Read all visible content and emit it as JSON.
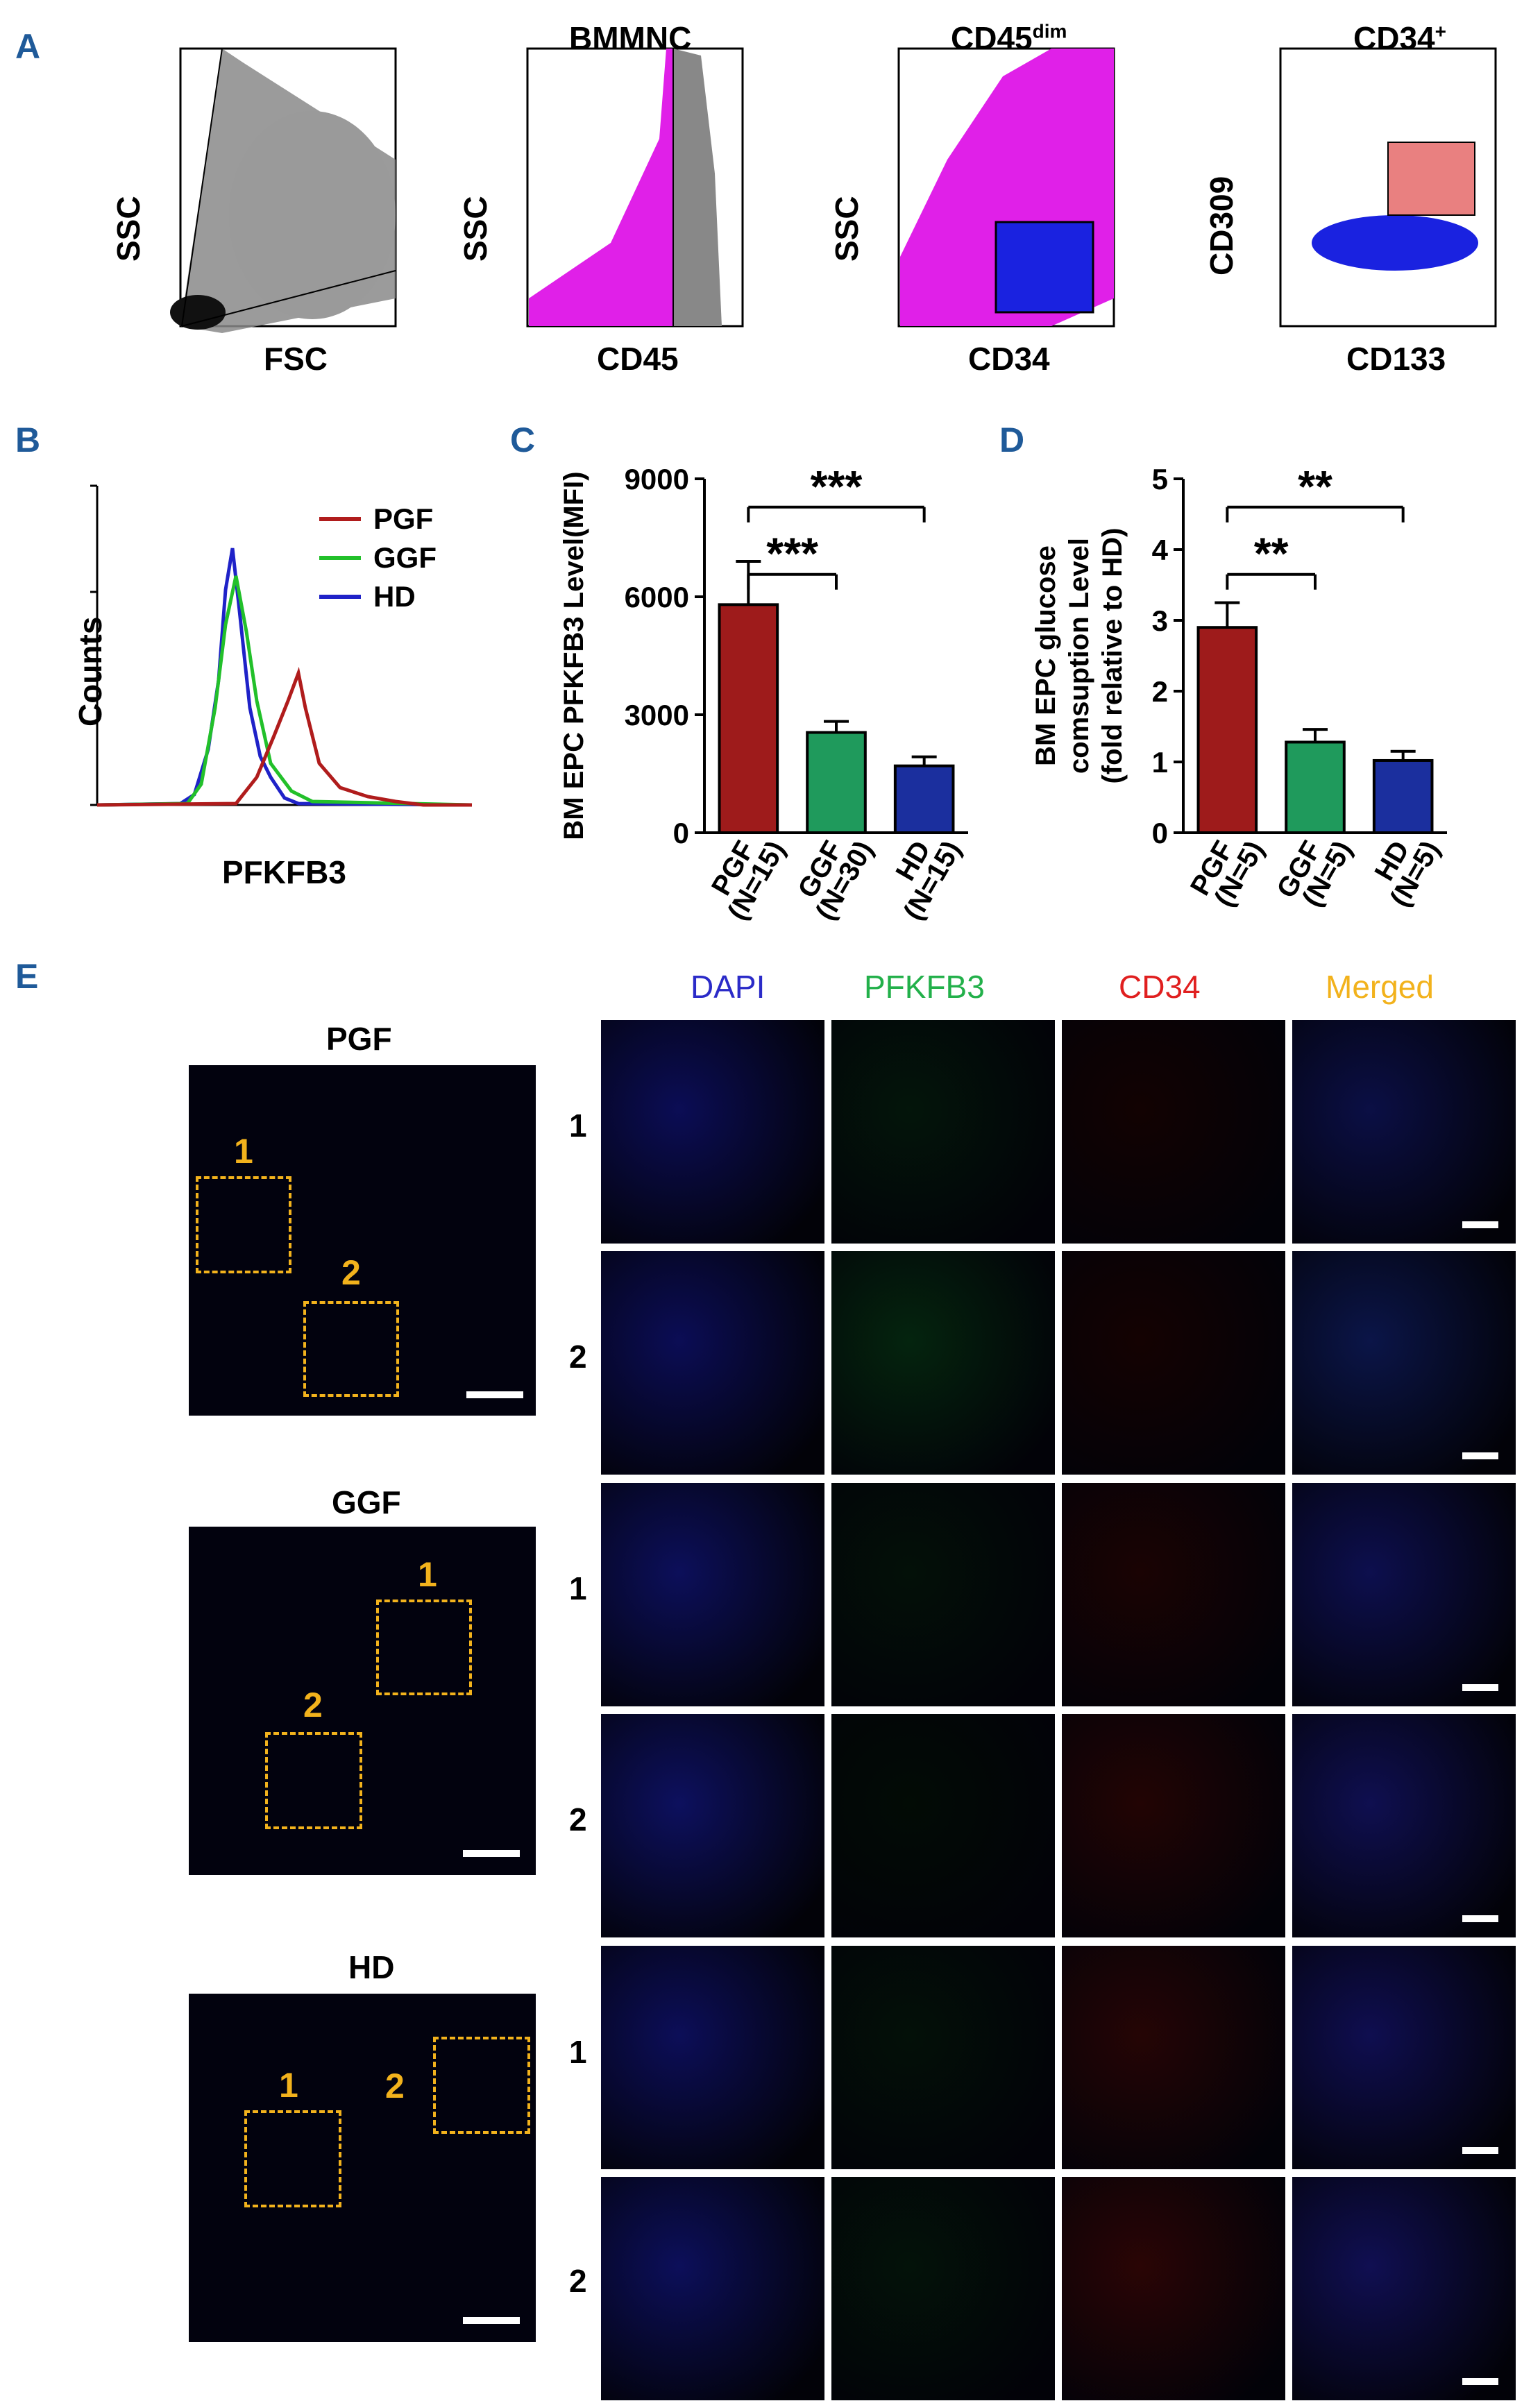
{
  "panels": {
    "A": "A",
    "B": "B",
    "C": "C",
    "D": "D",
    "E": "E"
  },
  "flow": {
    "p1": {
      "title": "",
      "xlabel": "FSC",
      "ylabel": "SSC"
    },
    "p2": {
      "title": "BMMNC",
      "xlabel": "CD45",
      "ylabel": "SSC"
    },
    "p3": {
      "title": "CD45",
      "title_sup": "dim",
      "xlabel": "CD34",
      "ylabel": "SSC"
    },
    "p4": {
      "title": "CD34",
      "title_sup": "+",
      "xlabel": "CD133",
      "ylabel": "CD309"
    }
  },
  "histogram": {
    "xlabel": "PFKFB3",
    "ylabel": "Counts",
    "legend": [
      {
        "name": "PGF",
        "color": "#b01c1c"
      },
      {
        "name": "GGF",
        "color": "#22c02a"
      },
      {
        "name": "HD",
        "color": "#1f22c8"
      }
    ]
  },
  "chart_data": [
    {
      "type": "bar",
      "ylabel": "BM EPC PFKFB3 Level(MFI)",
      "categories": [
        "PGF\n(N=15)",
        "GGF\n(N=30)",
        "HD\n(N=15)"
      ],
      "category_lines": [
        [
          "PGF",
          "(N=15)"
        ],
        [
          "GGF",
          "(N=30)"
        ],
        [
          "HD",
          "(N=15)"
        ]
      ],
      "values": [
        5800,
        2550,
        1700
      ],
      "errors": [
        1100,
        280,
        230
      ],
      "colors": [
        "#9e1b1b",
        "#1f9a5c",
        "#1b2f9e"
      ],
      "ylim": [
        0,
        9000
      ],
      "yticks": [
        "0",
        "3000",
        "6000",
        "9000"
      ],
      "ytick_values": [
        0,
        3000,
        6000,
        9000
      ],
      "significance": [
        {
          "from": 0,
          "to": 1,
          "label": "***"
        },
        {
          "from": 0,
          "to": 2,
          "label": "***"
        }
      ]
    },
    {
      "type": "bar",
      "ylabel_lines": [
        "BM EPC glucose",
        "comsuption Level",
        "(fold relative to HD)"
      ],
      "categories": [
        "PGF\n(N=5)",
        "GGF\n(N=5)",
        "HD\n(N=5)"
      ],
      "category_lines": [
        [
          "PGF",
          "(N=5)"
        ],
        [
          "GGF",
          "(N=5)"
        ],
        [
          "HD",
          "(N=5)"
        ]
      ],
      "values": [
        2.9,
        1.28,
        1.02
      ],
      "errors": [
        0.35,
        0.18,
        0.13
      ],
      "colors": [
        "#9e1b1b",
        "#1f9a5c",
        "#1b2f9e"
      ],
      "ylim": [
        0,
        5
      ],
      "yticks": [
        "0",
        "1",
        "2",
        "3",
        "4",
        "5"
      ],
      "ytick_values": [
        0,
        1,
        2,
        3,
        4,
        5
      ],
      "significance": [
        {
          "from": 0,
          "to": 1,
          "label": "**"
        },
        {
          "from": 0,
          "to": 2,
          "label": "**"
        }
      ]
    }
  ],
  "imaging": {
    "columns": [
      {
        "label": "DAPI",
        "color": "#2b2bc8"
      },
      {
        "label": "PFKFB3",
        "color": "#22b04a"
      },
      {
        "label": "CD34",
        "color": "#e01f1f"
      },
      {
        "label": "Merged",
        "color": "#f2b21c"
      }
    ],
    "groups": [
      {
        "name": "PGF",
        "boxes": [
          "1",
          "2"
        ],
        "rows": [
          "1",
          "2"
        ]
      },
      {
        "name": "GGF",
        "boxes": [
          "1",
          "2"
        ],
        "rows": [
          "1",
          "2"
        ]
      },
      {
        "name": "HD",
        "boxes": [
          "1",
          "2"
        ],
        "rows": [
          "1",
          "2"
        ]
      }
    ]
  }
}
